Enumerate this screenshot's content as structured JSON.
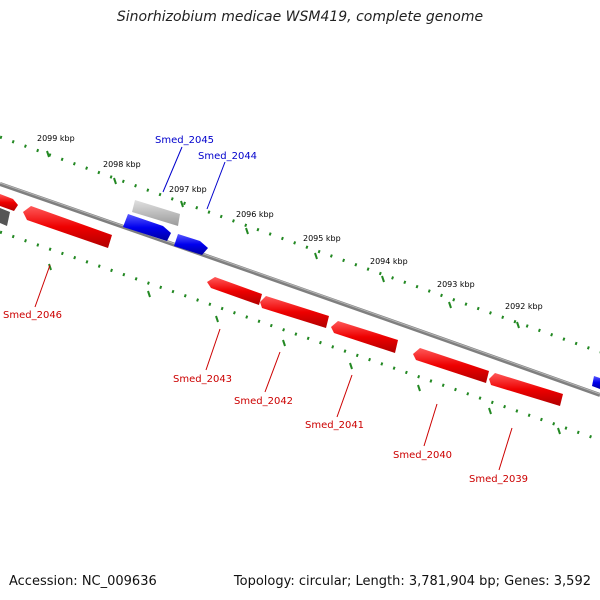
{
  "title": "Sinorhizobium medicae WSM419, complete genome",
  "footer": {
    "accession": "Accession: NC_009636",
    "summary": "Topology: circular; Length: 3,781,904 bp; Genes: 3,592"
  },
  "colors": {
    "forward_gene": "#0000ee",
    "reverse_gene": "#ee0000",
    "other_feature": "#aaaaaa",
    "backbone": "#7f7f7f",
    "ticks": "#228822"
  },
  "scale_labels": [
    {
      "text": "2099 kbp"
    },
    {
      "text": "2098 kbp"
    },
    {
      "text": "2097 kbp"
    },
    {
      "text": "2096 kbp"
    },
    {
      "text": "2095 kbp"
    },
    {
      "text": "2094 kbp"
    },
    {
      "text": "2093 kbp"
    },
    {
      "text": "2092 kbp"
    }
  ],
  "genes": [
    {
      "label": "Smed_2046",
      "strand": "reverse"
    },
    {
      "label": "Smed_2045",
      "strand": "forward"
    },
    {
      "label": "Smed_2044",
      "strand": "forward"
    },
    {
      "label": "Smed_2043",
      "strand": "reverse"
    },
    {
      "label": "Smed_2042",
      "strand": "reverse"
    },
    {
      "label": "Smed_2041",
      "strand": "reverse"
    },
    {
      "label": "Smed_2040",
      "strand": "reverse"
    },
    {
      "label": "Smed_2039",
      "strand": "reverse"
    }
  ]
}
